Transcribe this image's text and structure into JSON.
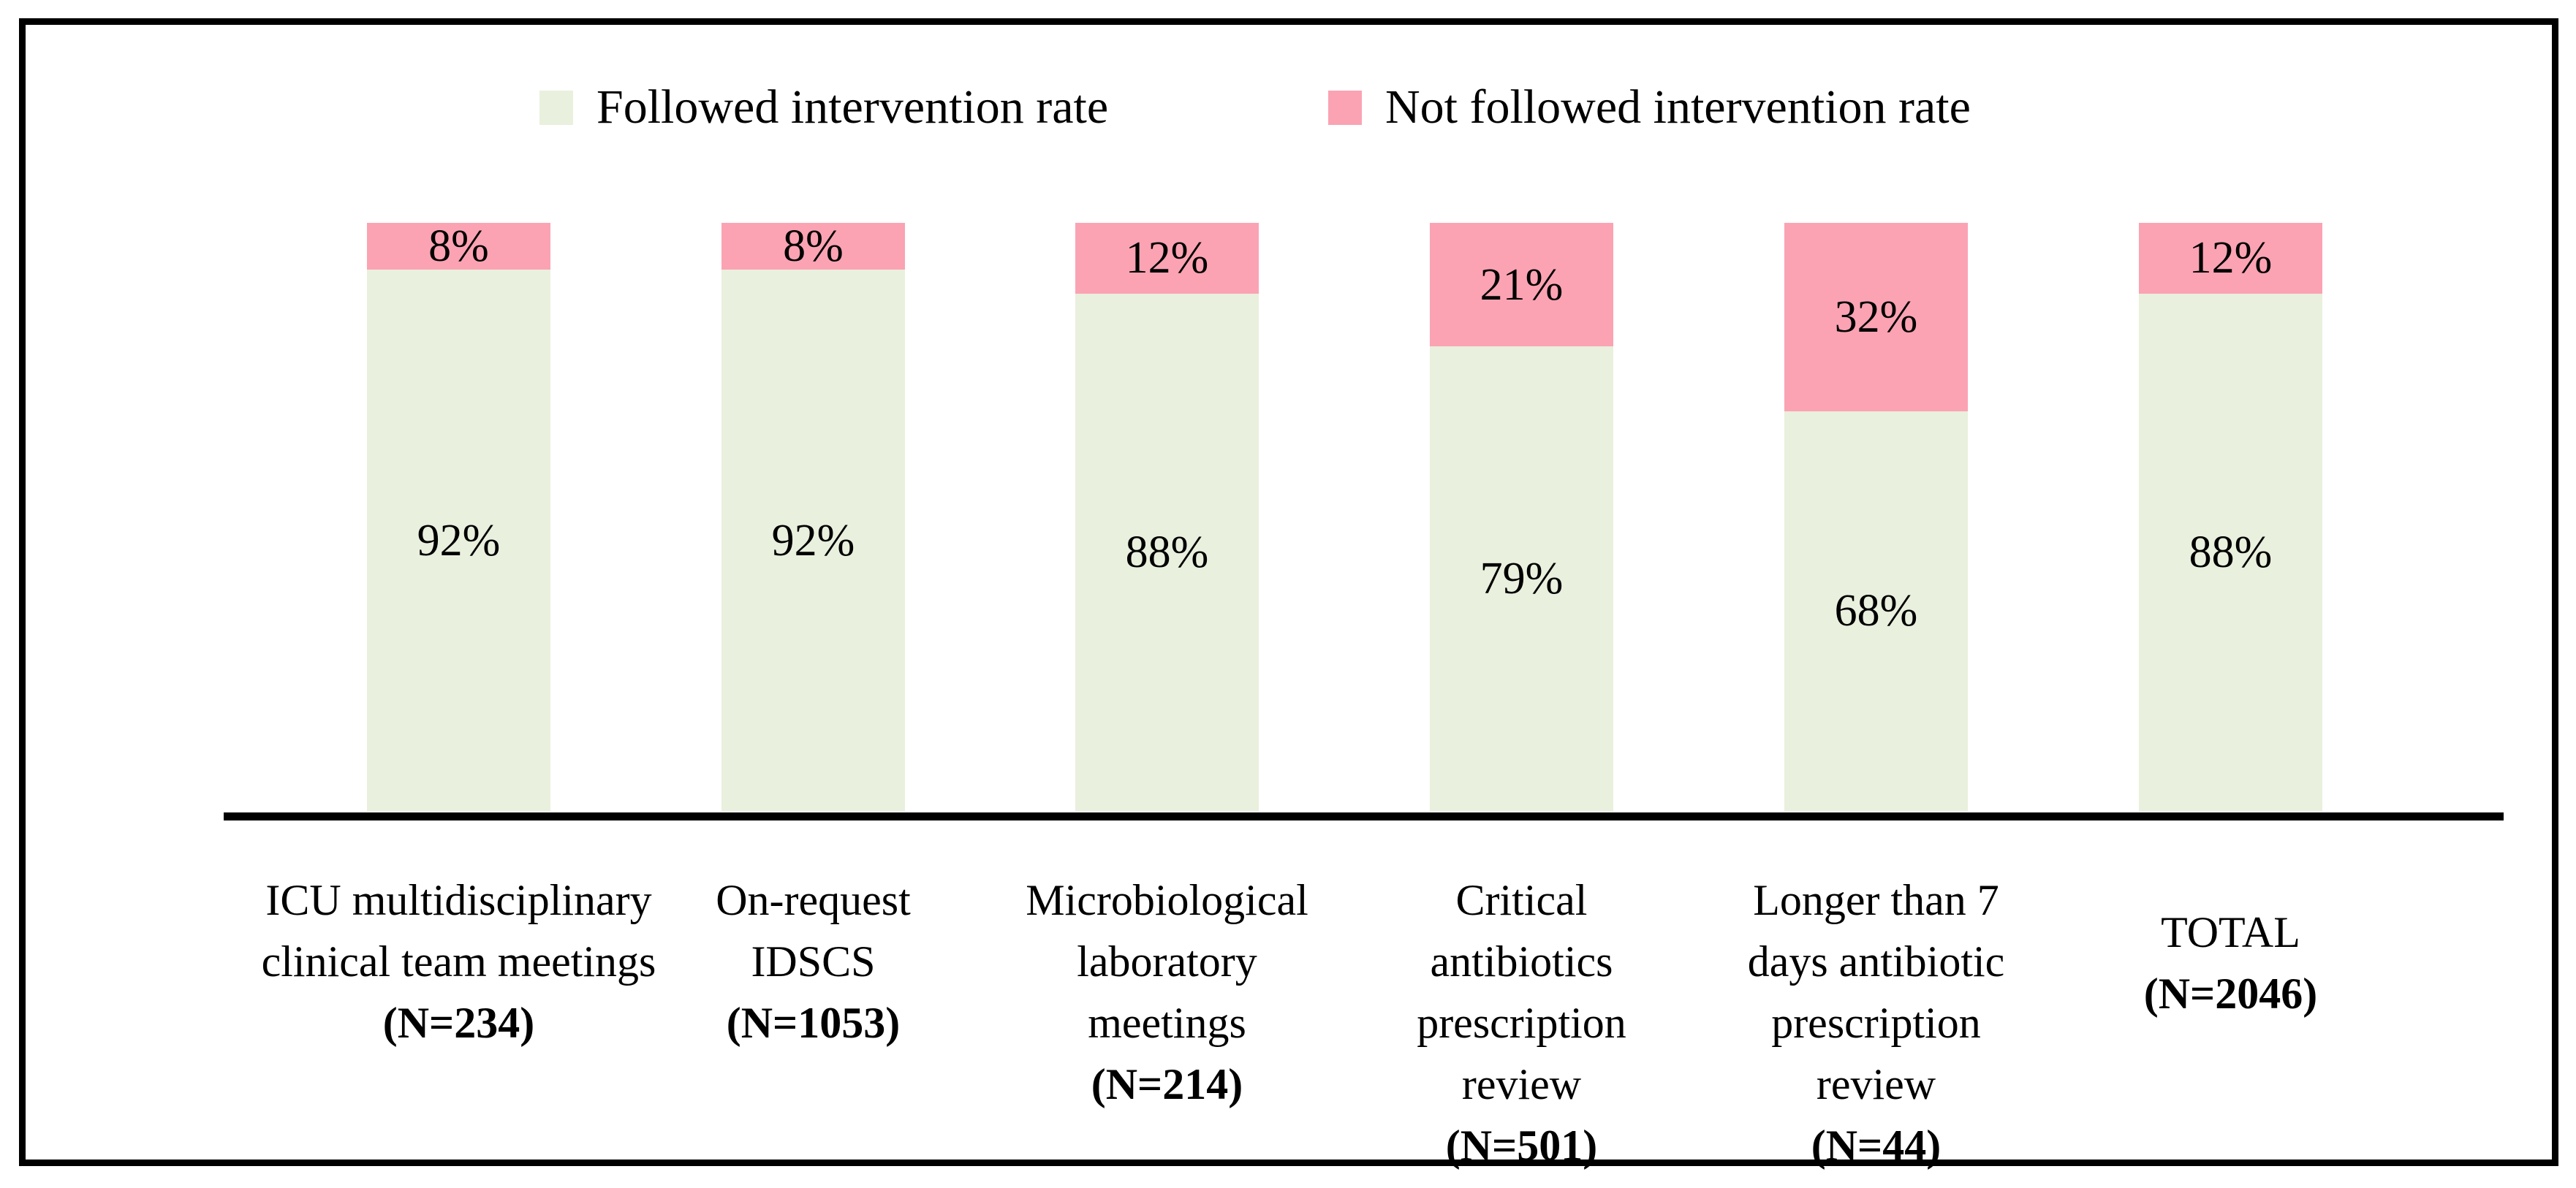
{
  "legend": {
    "items": [
      {
        "label": "Followed intervention rate",
        "color": "#E9F0DD"
      },
      {
        "label": "Not followed intervention rate",
        "color": "#FBA3B3"
      }
    ]
  },
  "chart_data": {
    "type": "bar",
    "subtype": "stacked-100-percent",
    "orientation": "vertical",
    "unit": "%",
    "title": "",
    "xlabel": "",
    "ylabel": "",
    "ylim": [
      0,
      100
    ],
    "gridlines": false,
    "legend_position": "top",
    "categories": [
      {
        "lines": [
          "ICU multidisciplinary",
          "clinical team meetings"
        ],
        "n_label": "(N=234)",
        "is_total": false
      },
      {
        "lines": [
          "On-request",
          "IDSCS"
        ],
        "n_label": "(N=1053)",
        "is_total": false
      },
      {
        "lines": [
          "Microbiological",
          "laboratory",
          "meetings"
        ],
        "n_label": "(N=214)",
        "is_total": false
      },
      {
        "lines": [
          "Critical",
          "antibiotics",
          "prescription",
          "review"
        ],
        "n_label": "(N=501)",
        "is_total": false
      },
      {
        "lines": [
          "Longer than 7",
          "days antibiotic",
          "prescription",
          "review"
        ],
        "n_label": "(N=44)",
        "is_total": false
      },
      {
        "lines": [
          "TOTAL"
        ],
        "n_label": "(N=2046)",
        "is_total": true
      }
    ],
    "series": [
      {
        "name": "Followed intervention rate",
        "color": "#E9F0DD",
        "values": [
          92,
          92,
          88,
          79,
          68,
          88
        ],
        "labels": [
          "92%",
          "92%",
          "88%",
          "79%",
          "68%",
          "88%"
        ]
      },
      {
        "name": "Not followed intervention rate",
        "color": "#FBA3B3",
        "values": [
          8,
          8,
          12,
          21,
          32,
          12
        ],
        "labels": [
          "8%",
          "8%",
          "12%",
          "21%",
          "32%",
          "12%"
        ]
      }
    ]
  },
  "colors": {
    "followed": "#E9F0DD",
    "not_followed": "#FBA3B3",
    "axis": "#000000",
    "border": "#000000",
    "text": "#000000"
  }
}
